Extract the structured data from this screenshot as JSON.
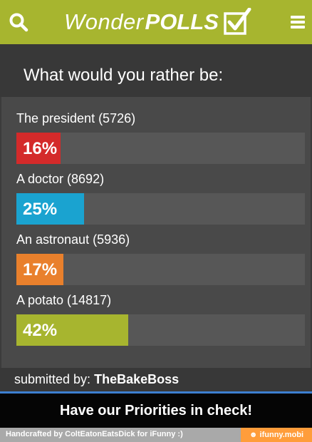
{
  "app": {
    "logo_light": "Wonder",
    "logo_bold": "POLLS"
  },
  "poll": {
    "question": "What would you rather be:",
    "options": [
      {
        "label": "The president (5726)",
        "percent_text": "16%",
        "percent": 16,
        "color": "#d42a2a"
      },
      {
        "label": "A doctor (8692)",
        "percent_text": "25%",
        "percent": 25,
        "color": "#1aa3d0"
      },
      {
        "label": "An astronaut (5936)",
        "percent_text": "17%",
        "percent": 17,
        "color": "#e9802c"
      },
      {
        "label": "A potato (14817)",
        "percent_text": "42%",
        "percent": 42,
        "color": "#a7b52f"
      }
    ],
    "submitted_prefix": "submitted by:",
    "submitted_by": "TheBakeBoss"
  },
  "caption": "Have our Priorities in check!",
  "footer": {
    "credit": "Handcrafted by ColtEatonEatsDick for iFunny :)",
    "brand": "☻ ifunny.mobi"
  },
  "icons": {
    "search": "search-icon",
    "menu": "hamburger-menu-icon",
    "check": "checkbox-check-icon"
  },
  "colors": {
    "header": "#a7b52f",
    "panel": "#494949"
  }
}
